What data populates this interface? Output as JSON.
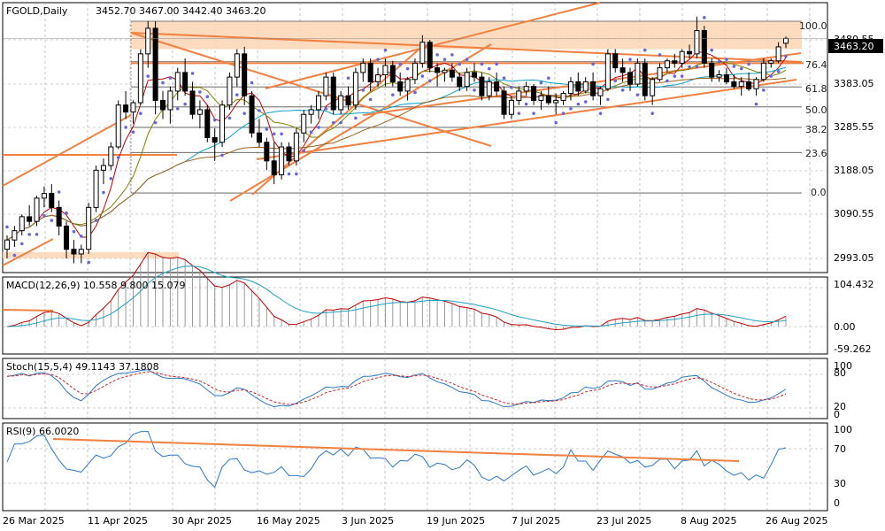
{
  "header": {
    "symbol": "FGOLD,Daily",
    "ohlc": "3452.70 3467.00 3442.40 3463.20"
  },
  "current_price": "3463.20",
  "colors": {
    "up_candle": "#ffffff",
    "down_candle": "#000000",
    "ma_fast": "#c00000",
    "ma_mid": "#808000",
    "ma_slow": "#0aa0c8",
    "ma_long": "#a0621e",
    "sar": "#6666dd",
    "trendline": "#f28040",
    "fib_zone": "#fcd5b4",
    "macd_line": "#c00000",
    "signal_line": "#20a0c0",
    "stoch_main": "#2a78c8",
    "stoch_signal": "#d02020",
    "rsi_line": "#2a78c8",
    "grid": "#a0a0a0"
  },
  "price_panel": {
    "y_ticks": [
      "3480.55",
      "3383.05",
      "3285.55",
      "3188.05",
      "3090.55",
      "2993.05"
    ],
    "fib_levels": [
      {
        "label": "100.0",
        "price": 3500
      },
      {
        "label": "76.4",
        "price": 3413
      },
      {
        "label": "61.8",
        "price": 3359
      },
      {
        "label": "50.0",
        "price": 3316
      },
      {
        "label": "38.2",
        "price": 3272
      },
      {
        "label": "23.6",
        "price": 3218
      },
      {
        "label": "0.0",
        "price": 3131
      }
    ]
  },
  "macd_panel": {
    "title": "MACD(12,26,9) 10.558 9.800 15.079",
    "y_ticks": [
      "104.432",
      "0.00",
      "-59.262"
    ]
  },
  "stoch_panel": {
    "title": "Stoch(15,5,4) 49.1143 37.1808",
    "y_ticks": [
      "100",
      "80",
      "20",
      "0"
    ]
  },
  "rsi_panel": {
    "title": "RSI(9) 66.0020",
    "y_ticks": [
      "100",
      "70",
      "30",
      "0"
    ]
  },
  "x_labels": [
    "26 Mar 2025",
    "11 Apr 2025",
    "30 Apr 2025",
    "16 May 2025",
    "3 Jun 2025",
    "19 Jun 2025",
    "7 Jul 2025",
    "23 Jul 2025",
    "8 Aug 2025",
    "26 Aug 2025"
  ],
  "chart_data": {
    "type": "candlestick",
    "title": "FGOLD,Daily",
    "ylim": [
      2960,
      3540
    ],
    "candles": [
      [
        3010,
        3040,
        2990,
        3030
      ],
      [
        3030,
        3060,
        3015,
        3050
      ],
      [
        3050,
        3085,
        3040,
        3080
      ],
      [
        3080,
        3105,
        3060,
        3070
      ],
      [
        3070,
        3125,
        3060,
        3120
      ],
      [
        3120,
        3145,
        3100,
        3130
      ],
      [
        3130,
        3150,
        3090,
        3100
      ],
      [
        3100,
        3115,
        3040,
        3060
      ],
      [
        3060,
        3070,
        2990,
        3010
      ],
      [
        3010,
        3030,
        2980,
        3000
      ],
      [
        3000,
        3020,
        2980,
        3010
      ],
      [
        3010,
        3110,
        3000,
        3100
      ],
      [
        3100,
        3190,
        3090,
        3180
      ],
      [
        3180,
        3205,
        3150,
        3190
      ],
      [
        3190,
        3240,
        3180,
        3230
      ],
      [
        3230,
        3330,
        3225,
        3320
      ],
      [
        3320,
        3350,
        3290,
        3305
      ],
      [
        3305,
        3330,
        3280,
        3325
      ],
      [
        3325,
        3440,
        3320,
        3430
      ],
      [
        3430,
        3500,
        3400,
        3485
      ],
      [
        3485,
        3500,
        3300,
        3330
      ],
      [
        3330,
        3350,
        3290,
        3310
      ],
      [
        3310,
        3360,
        3280,
        3350
      ],
      [
        3350,
        3400,
        3330,
        3390
      ],
      [
        3390,
        3420,
        3340,
        3350
      ],
      [
        3350,
        3370,
        3290,
        3300
      ],
      [
        3300,
        3330,
        3270,
        3310
      ],
      [
        3310,
        3320,
        3240,
        3250
      ],
      [
        3250,
        3270,
        3200,
        3240
      ],
      [
        3240,
        3330,
        3230,
        3320
      ],
      [
        3320,
        3390,
        3310,
        3380
      ],
      [
        3380,
        3440,
        3360,
        3430
      ],
      [
        3430,
        3445,
        3320,
        3340
      ],
      [
        3340,
        3350,
        3250,
        3260
      ],
      [
        3260,
        3290,
        3230,
        3240
      ],
      [
        3240,
        3250,
        3180,
        3200
      ],
      [
        3200,
        3240,
        3150,
        3170
      ],
      [
        3170,
        3240,
        3160,
        3230
      ],
      [
        3230,
        3240,
        3190,
        3200
      ],
      [
        3200,
        3270,
        3190,
        3260
      ],
      [
        3260,
        3310,
        3240,
        3300
      ],
      [
        3300,
        3320,
        3280,
        3310
      ],
      [
        3310,
        3350,
        3290,
        3340
      ],
      [
        3340,
        3390,
        3330,
        3380
      ],
      [
        3380,
        3390,
        3300,
        3310
      ],
      [
        3310,
        3350,
        3300,
        3340
      ],
      [
        3340,
        3360,
        3310,
        3320
      ],
      [
        3320,
        3400,
        3310,
        3390
      ],
      [
        3390,
        3420,
        3370,
        3410
      ],
      [
        3410,
        3420,
        3350,
        3370
      ],
      [
        3370,
        3400,
        3360,
        3385
      ],
      [
        3385,
        3420,
        3360,
        3405
      ],
      [
        3405,
        3415,
        3360,
        3370
      ],
      [
        3370,
        3390,
        3340,
        3350
      ],
      [
        3350,
        3380,
        3330,
        3375
      ],
      [
        3375,
        3420,
        3365,
        3410
      ],
      [
        3410,
        3470,
        3400,
        3455
      ],
      [
        3455,
        3460,
        3390,
        3400
      ],
      [
        3400,
        3410,
        3360,
        3390
      ],
      [
        3390,
        3400,
        3370,
        3395
      ],
      [
        3395,
        3410,
        3370,
        3380
      ],
      [
        3380,
        3390,
        3350,
        3360
      ],
      [
        3360,
        3400,
        3350,
        3390
      ],
      [
        3390,
        3410,
        3370,
        3380
      ],
      [
        3380,
        3390,
        3330,
        3340
      ],
      [
        3340,
        3380,
        3330,
        3370
      ],
      [
        3370,
        3390,
        3340,
        3350
      ],
      [
        3350,
        3360,
        3290,
        3300
      ],
      [
        3300,
        3340,
        3290,
        3330
      ],
      [
        3330,
        3360,
        3320,
        3350
      ],
      [
        3350,
        3370,
        3340,
        3360
      ],
      [
        3360,
        3365,
        3320,
        3330
      ],
      [
        3330,
        3350,
        3310,
        3340
      ],
      [
        3340,
        3360,
        3320,
        3325
      ],
      [
        3325,
        3345,
        3300,
        3330
      ],
      [
        3330,
        3350,
        3320,
        3345
      ],
      [
        3345,
        3380,
        3330,
        3370
      ],
      [
        3370,
        3390,
        3340,
        3350
      ],
      [
        3350,
        3380,
        3345,
        3370
      ],
      [
        3370,
        3390,
        3330,
        3340
      ],
      [
        3340,
        3360,
        3320,
        3355
      ],
      [
        3355,
        3440,
        3350,
        3430
      ],
      [
        3430,
        3440,
        3390,
        3400
      ],
      [
        3400,
        3420,
        3370,
        3390
      ],
      [
        3390,
        3400,
        3350,
        3365
      ],
      [
        3365,
        3420,
        3360,
        3410
      ],
      [
        3410,
        3420,
        3330,
        3340
      ],
      [
        3340,
        3380,
        3320,
        3375
      ],
      [
        3375,
        3410,
        3370,
        3400
      ],
      [
        3400,
        3420,
        3390,
        3415
      ],
      [
        3415,
        3430,
        3400,
        3410
      ],
      [
        3410,
        3440,
        3400,
        3435
      ],
      [
        3435,
        3450,
        3420,
        3430
      ],
      [
        3430,
        3510,
        3420,
        3480
      ],
      [
        3480,
        3490,
        3400,
        3410
      ],
      [
        3410,
        3420,
        3370,
        3380
      ],
      [
        3380,
        3395,
        3370,
        3385
      ],
      [
        3385,
        3400,
        3365,
        3370
      ],
      [
        3370,
        3385,
        3355,
        3360
      ],
      [
        3360,
        3380,
        3340,
        3370
      ],
      [
        3370,
        3390,
        3350,
        3355
      ],
      [
        3355,
        3380,
        3340,
        3375
      ],
      [
        3375,
        3420,
        3370,
        3410
      ],
      [
        3410,
        3420,
        3400,
        3415
      ],
      [
        3415,
        3455,
        3410,
        3445
      ],
      [
        3452.7,
        3467,
        3442.4,
        3463.2
      ]
    ]
  }
}
